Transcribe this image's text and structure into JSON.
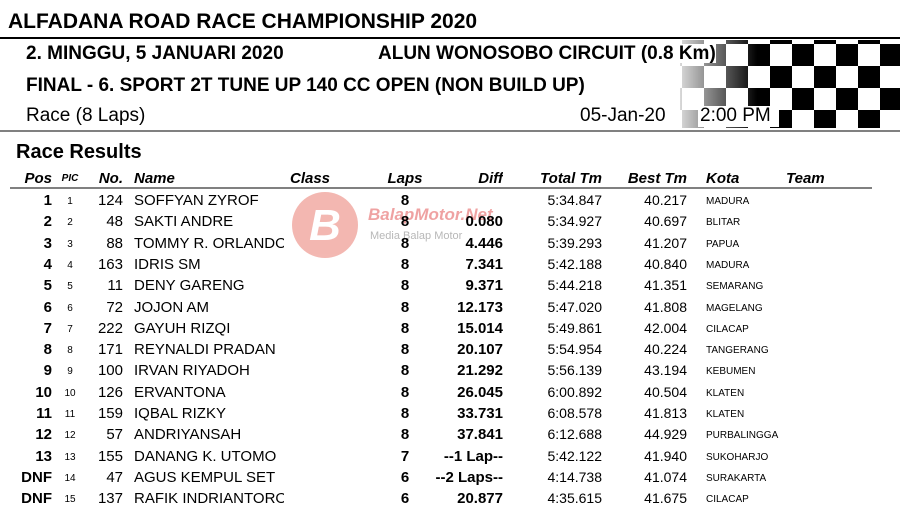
{
  "header": {
    "title": "ALFADANA ROAD RACE CHAMPIONSHIP 2020",
    "date_line": "2. MINGGU, 5 JANUARI 2020",
    "circuit": "ALUN WONOSOBO CIRCUIT (0.8 Km)",
    "event": "FINAL - 6. SPORT 2T TUNE UP 140 CC OPEN (NON BUILD UP)",
    "race": "Race (8 Laps)",
    "date": "05-Jan-20",
    "time": "2:00 PM"
  },
  "watermark": {
    "brand": "BalapMotor.Net",
    "tagline": "Media Balap Motor"
  },
  "section_title": "Race Results",
  "table": {
    "columns": {
      "pos": "Pos",
      "pic": "PIC",
      "no": "No.",
      "name": "Name",
      "class": "Class",
      "laps": "Laps",
      "diff": "Diff",
      "total": "Total Tm",
      "best": "Best Tm",
      "kota": "Kota",
      "team": "Team"
    },
    "rows": [
      {
        "pos": "1",
        "pic": "1",
        "no": "124",
        "name": "SOFFYAN ZYROF",
        "laps": "8",
        "total": "5:34.847",
        "best": "40.217",
        "kota": "MADURA"
      },
      {
        "pos": "2",
        "pic": "2",
        "no": "48",
        "name": "SAKTI ANDRE",
        "laps": "8",
        "diff": "0.080",
        "total": "5:34.927",
        "best": "40.697",
        "kota": "BLITAR"
      },
      {
        "pos": "3",
        "pic": "3",
        "no": "88",
        "name": "TOMMY R. ORLANDO",
        "laps": "8",
        "diff": "4.446",
        "total": "5:39.293",
        "best": "41.207",
        "kota": "PAPUA"
      },
      {
        "pos": "4",
        "pic": "4",
        "no": "163",
        "name": "IDRIS SM",
        "laps": "8",
        "diff": "7.341",
        "total": "5:42.188",
        "best": "40.840",
        "kota": "MADURA"
      },
      {
        "pos": "5",
        "pic": "5",
        "no": "11",
        "name": "DENY GARENG",
        "laps": "8",
        "diff": "9.371",
        "total": "5:44.218",
        "best": "41.351",
        "kota": "SEMARANG"
      },
      {
        "pos": "6",
        "pic": "6",
        "no": "72",
        "name": "JOJON AM",
        "laps": "8",
        "diff": "12.173",
        "total": "5:47.020",
        "best": "41.808",
        "kota": "MAGELANG"
      },
      {
        "pos": "7",
        "pic": "7",
        "no": "222",
        "name": "GAYUH RIZQI",
        "laps": "8",
        "diff": "15.014",
        "total": "5:49.861",
        "best": "42.004",
        "kota": "CILACAP"
      },
      {
        "pos": "8",
        "pic": "8",
        "no": "171",
        "name": "REYNALDI PRADAN",
        "laps": "8",
        "diff": "20.107",
        "total": "5:54.954",
        "best": "40.224",
        "kota": "TANGERANG"
      },
      {
        "pos": "9",
        "pic": "9",
        "no": "100",
        "name": "IRVAN RIYADOH",
        "laps": "8",
        "diff": "21.292",
        "total": "5:56.139",
        "best": "43.194",
        "kota": "KEBUMEN"
      },
      {
        "pos": "10",
        "pic": "10",
        "no": "126",
        "name": "ERVANTONA",
        "laps": "8",
        "diff": "26.045",
        "total": "6:00.892",
        "best": "40.504",
        "kota": "KLATEN"
      },
      {
        "pos": "11",
        "pic": "11",
        "no": "159",
        "name": "IQBAL RIZKY",
        "laps": "8",
        "diff": "33.731",
        "total": "6:08.578",
        "best": "41.813",
        "kota": "KLATEN"
      },
      {
        "pos": "12",
        "pic": "12",
        "no": "57",
        "name": "ANDRIYANSAH",
        "laps": "8",
        "diff": "37.841",
        "total": "6:12.688",
        "best": "44.929",
        "kota": "PURBALINGGA"
      },
      {
        "pos": "13",
        "pic": "13",
        "no": "155",
        "name": "DANANG K. UTOMO",
        "laps": "7",
        "diff": "--1 Lap--",
        "total": "5:42.122",
        "best": "41.940",
        "kota": "SUKOHARJO"
      },
      {
        "pos": "DNF",
        "pic": "14",
        "no": "47",
        "name": "AGUS KEMPUL SET",
        "laps": "6",
        "diff": "--2 Laps--",
        "total": "4:14.738",
        "best": "41.074",
        "kota": "SURAKARTA"
      },
      {
        "pos": "DNF",
        "pic": "15",
        "no": "137",
        "name": "RAFIK INDRIANTORO",
        "laps": "6",
        "diff": "20.877",
        "total": "4:35.615",
        "best": "41.675",
        "kota": "CILACAP"
      }
    ]
  }
}
